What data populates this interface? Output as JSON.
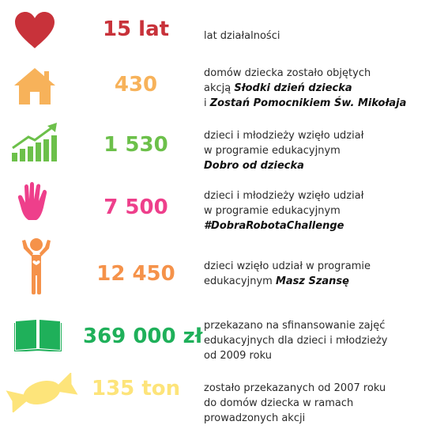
{
  "colors": {
    "red": "#c8323a",
    "orange": "#f7b25a",
    "green": "#6cc04a",
    "pink": "#ee3f8b",
    "orange_dark": "#f5924a",
    "green_dark": "#1fb05a",
    "yellow": "#fde47a"
  },
  "rows": [
    {
      "icon": "heart-icon",
      "value": "15 lat",
      "lines": [
        [
          "lat działalności",
          ""
        ]
      ]
    },
    {
      "icon": "house-icon",
      "value": "430",
      "lines": [
        [
          "domów dziecka zostało objętych",
          ""
        ],
        [
          "akcją ",
          "Słodki dzień dziecka"
        ],
        [
          "i ",
          "Zostań Pomocnikiem Św. Mikołaja"
        ]
      ]
    },
    {
      "icon": "growth-chart-icon",
      "value": "1 530",
      "lines": [
        [
          "dzieci i młodzieży wzięło udział",
          ""
        ],
        [
          "w programie edukacyjnym",
          ""
        ],
        [
          "",
          "Dobro od dziecka"
        ]
      ]
    },
    {
      "icon": "hand-icon",
      "value": "7 500",
      "lines": [
        [
          "dzieci i młodzieży wzięło udział",
          ""
        ],
        [
          "w programie edukacyjnym",
          ""
        ],
        [
          "",
          "#DobraRobotaChallenge"
        ]
      ]
    },
    {
      "icon": "child-figure-icon",
      "value": "12 450",
      "lines": [
        [
          "dzieci wzięło udział w programie",
          ""
        ],
        [
          "edukacyjnym ",
          "Masz Szansę"
        ]
      ]
    },
    {
      "icon": "open-book-icon",
      "value": "369 000 zł",
      "lines": [
        [
          "przekazano na sfinansowanie zajęć",
          ""
        ],
        [
          "edukacyjnych dla dzieci i młodzieży",
          ""
        ],
        [
          "od 2009 roku",
          ""
        ]
      ]
    },
    {
      "icon": "candy-icon",
      "value": "135 ton",
      "lines": [
        [
          "zostało przekazanych od 2007 roku",
          ""
        ],
        [
          "do domów dziecka w ramach",
          ""
        ],
        [
          "prowadzonych akcji",
          ""
        ]
      ]
    }
  ]
}
